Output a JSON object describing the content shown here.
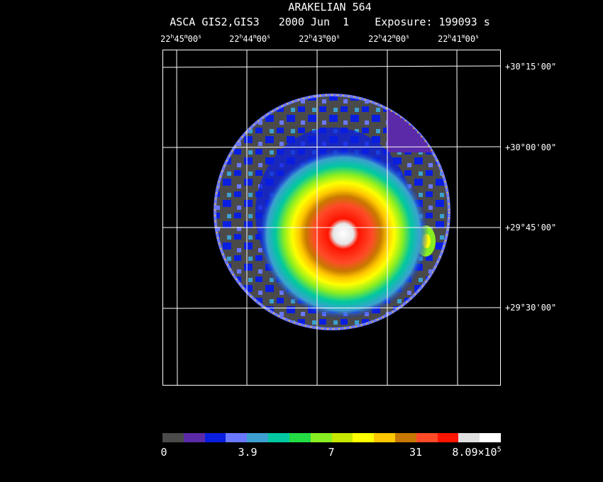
{
  "title": "ARAKELIAN 564",
  "subtitle": "ASCA GIS2,GIS3   2000 Jun  1    Exposure: 199093 s",
  "ra_ticks": [
    {
      "h": "22",
      "m": "45",
      "s": "00"
    },
    {
      "h": "22",
      "m": "44",
      "s": "00"
    },
    {
      "h": "22",
      "m": "43",
      "s": "00"
    },
    {
      "h": "22",
      "m": "42",
      "s": "00"
    },
    {
      "h": "22",
      "m": "41",
      "s": "00"
    }
  ],
  "dec_ticks": [
    "+30°15'00\"",
    "+30°00'00\"",
    "+29°45'00\"",
    "+29°30'00\""
  ],
  "colorbar": {
    "colors": [
      "#4a4a4a",
      "#5a2aa8",
      "#0a1ee0",
      "#6a78ff",
      "#3ca0d0",
      "#00c8a0",
      "#22dd44",
      "#88ee22",
      "#c8e800",
      "#ffff00",
      "#ffc800",
      "#c87800",
      "#ff4a28",
      "#ff1400",
      "#e0e0e0",
      "#ffffff"
    ],
    "labels": [
      "0",
      "3.9",
      "7",
      "31",
      "8.09×10"
    ],
    "last_exp": "5"
  }
}
